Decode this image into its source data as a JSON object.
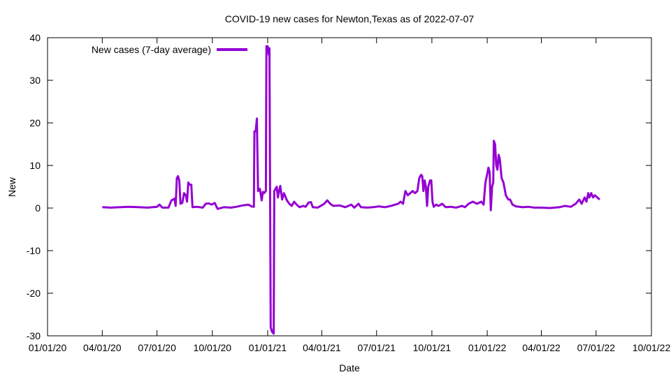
{
  "chart_data": {
    "type": "line",
    "title": "COVID-19 new cases for Newton,Texas as of 2022-07-07",
    "xlabel": "Date",
    "ylabel": "New",
    "ylim": [
      -30,
      40
    ],
    "yticks": [
      -30,
      -20,
      -10,
      0,
      10,
      20,
      30,
      40
    ],
    "xlim": [
      "2020-01-01",
      "2022-10-01"
    ],
    "xticks": [
      {
        "date": "2020-01-01",
        "label": "01/01/20"
      },
      {
        "date": "2020-04-01",
        "label": "04/01/20"
      },
      {
        "date": "2020-07-01",
        "label": "07/01/20"
      },
      {
        "date": "2020-10-01",
        "label": "10/01/20"
      },
      {
        "date": "2021-01-01",
        "label": "01/01/21"
      },
      {
        "date": "2021-04-01",
        "label": "04/01/21"
      },
      {
        "date": "2021-07-01",
        "label": "07/01/21"
      },
      {
        "date": "2021-10-01",
        "label": "10/01/21"
      },
      {
        "date": "2022-01-01",
        "label": "01/01/22"
      },
      {
        "date": "2022-04-01",
        "label": "04/01/22"
      },
      {
        "date": "2022-07-01",
        "label": "07/01/22"
      },
      {
        "date": "2022-10-01",
        "label": "10/01/22"
      }
    ],
    "grid": false,
    "legend_position": "top-left",
    "series": [
      {
        "name": "New cases (7-day average)",
        "color": "#9400d3",
        "points": [
          [
            "2020-04-01",
            0.2
          ],
          [
            "2020-04-15",
            0.1
          ],
          [
            "2020-05-01",
            0.2
          ],
          [
            "2020-05-15",
            0.3
          ],
          [
            "2020-06-01",
            0.2
          ],
          [
            "2020-06-15",
            0.1
          ],
          [
            "2020-07-01",
            0.3
          ],
          [
            "2020-07-05",
            0.8
          ],
          [
            "2020-07-10",
            0.1
          ],
          [
            "2020-07-20",
            0.1
          ],
          [
            "2020-07-25",
            1.8
          ],
          [
            "2020-07-30",
            2.2
          ],
          [
            "2020-08-01",
            0.5
          ],
          [
            "2020-08-03",
            7.0
          ],
          [
            "2020-08-05",
            7.5
          ],
          [
            "2020-08-07",
            6.5
          ],
          [
            "2020-08-09",
            1.0
          ],
          [
            "2020-08-12",
            1.2
          ],
          [
            "2020-08-15",
            3.5
          ],
          [
            "2020-08-18",
            3.0
          ],
          [
            "2020-08-20",
            1.5
          ],
          [
            "2020-08-22",
            6.0
          ],
          [
            "2020-08-24",
            5.5
          ],
          [
            "2020-08-27",
            5.5
          ],
          [
            "2020-08-29",
            0.2
          ],
          [
            "2020-09-05",
            0.3
          ],
          [
            "2020-09-15",
            0.1
          ],
          [
            "2020-09-20",
            1.0
          ],
          [
            "2020-09-25",
            1.1
          ],
          [
            "2020-09-30",
            0.8
          ],
          [
            "2020-10-05",
            1.2
          ],
          [
            "2020-10-08",
            0.3
          ],
          [
            "2020-10-10",
            -0.2
          ],
          [
            "2020-10-20",
            0.2
          ],
          [
            "2020-11-01",
            0.1
          ],
          [
            "2020-11-10",
            0.3
          ],
          [
            "2020-11-20",
            0.6
          ],
          [
            "2020-11-30",
            0.8
          ],
          [
            "2020-12-05",
            0.4
          ],
          [
            "2020-12-09",
            0.3
          ],
          [
            "2020-12-10",
            18.0
          ],
          [
            "2020-12-12",
            18.0
          ],
          [
            "2020-12-14",
            21.0
          ],
          [
            "2020-12-16",
            4.0
          ],
          [
            "2020-12-19",
            4.5
          ],
          [
            "2020-12-22",
            1.8
          ],
          [
            "2020-12-24",
            3.8
          ],
          [
            "2020-12-26",
            3.5
          ],
          [
            "2020-12-29",
            4.0
          ],
          [
            "2020-12-30",
            38.0
          ],
          [
            "2021-01-01",
            38.0
          ],
          [
            "2021-01-03",
            36.0
          ],
          [
            "2021-01-04",
            37.5
          ],
          [
            "2021-01-06",
            -28.0
          ],
          [
            "2021-01-08",
            -29.0
          ],
          [
            "2021-01-11",
            -29.5
          ],
          [
            "2021-01-12",
            4.0
          ],
          [
            "2021-01-14",
            4.5
          ],
          [
            "2021-01-16",
            5.0
          ],
          [
            "2021-01-18",
            2.5
          ],
          [
            "2021-01-20",
            4.0
          ],
          [
            "2021-01-22",
            5.2
          ],
          [
            "2021-01-25",
            2.0
          ],
          [
            "2021-01-28",
            3.5
          ],
          [
            "2021-02-02",
            1.8
          ],
          [
            "2021-02-06",
            1.0
          ],
          [
            "2021-02-10",
            0.5
          ],
          [
            "2021-02-14",
            1.5
          ],
          [
            "2021-02-18",
            0.8
          ],
          [
            "2021-02-23",
            0.2
          ],
          [
            "2021-03-01",
            0.5
          ],
          [
            "2021-03-05",
            0.3
          ],
          [
            "2021-03-10",
            1.3
          ],
          [
            "2021-03-14",
            1.4
          ],
          [
            "2021-03-17",
            0.2
          ],
          [
            "2021-03-25",
            0.1
          ],
          [
            "2021-04-05",
            1.0
          ],
          [
            "2021-04-10",
            1.8
          ],
          [
            "2021-04-15",
            1.0
          ],
          [
            "2021-04-20",
            0.5
          ],
          [
            "2021-05-01",
            0.6
          ],
          [
            "2021-05-10",
            0.2
          ],
          [
            "2021-05-20",
            0.8
          ],
          [
            "2021-05-25",
            0.1
          ],
          [
            "2021-06-01",
            1.0
          ],
          [
            "2021-06-05",
            0.2
          ],
          [
            "2021-06-15",
            0.1
          ],
          [
            "2021-06-25",
            0.2
          ],
          [
            "2021-07-05",
            0.4
          ],
          [
            "2021-07-15",
            0.2
          ],
          [
            "2021-07-25",
            0.5
          ],
          [
            "2021-08-01",
            0.8
          ],
          [
            "2021-08-06",
            1.0
          ],
          [
            "2021-08-10",
            1.5
          ],
          [
            "2021-08-14",
            1.0
          ],
          [
            "2021-08-18",
            4.0
          ],
          [
            "2021-08-22",
            3.0
          ],
          [
            "2021-08-26",
            3.5
          ],
          [
            "2021-08-30",
            4.0
          ],
          [
            "2021-09-03",
            3.5
          ],
          [
            "2021-09-07",
            4.0
          ],
          [
            "2021-09-10",
            7.0
          ],
          [
            "2021-09-13",
            7.8
          ],
          [
            "2021-09-15",
            7.5
          ],
          [
            "2021-09-17",
            4.0
          ],
          [
            "2021-09-19",
            6.5
          ],
          [
            "2021-09-21",
            5.0
          ],
          [
            "2021-09-23",
            0.5
          ],
          [
            "2021-09-25",
            5.0
          ],
          [
            "2021-09-28",
            6.5
          ],
          [
            "2021-09-30",
            6.5
          ],
          [
            "2021-10-02",
            1.5
          ],
          [
            "2021-10-04",
            0.3
          ],
          [
            "2021-10-08",
            0.8
          ],
          [
            "2021-10-12",
            0.5
          ],
          [
            "2021-10-18",
            1.0
          ],
          [
            "2021-10-24",
            0.2
          ],
          [
            "2021-11-01",
            0.3
          ],
          [
            "2021-11-10",
            0.1
          ],
          [
            "2021-11-20",
            0.5
          ],
          [
            "2021-11-25",
            0.2
          ],
          [
            "2021-12-01",
            1.0
          ],
          [
            "2021-12-08",
            1.5
          ],
          [
            "2021-12-15",
            1.0
          ],
          [
            "2021-12-22",
            1.5
          ],
          [
            "2021-12-26",
            0.8
          ],
          [
            "2021-12-29",
            6.0
          ],
          [
            "2022-01-01",
            8.0
          ],
          [
            "2022-01-03",
            9.5
          ],
          [
            "2022-01-05",
            8.5
          ],
          [
            "2022-01-07",
            -0.5
          ],
          [
            "2022-01-09",
            5.0
          ],
          [
            "2022-01-11",
            6.0
          ],
          [
            "2022-01-12",
            15.8
          ],
          [
            "2022-01-14",
            15.0
          ],
          [
            "2022-01-16",
            10.0
          ],
          [
            "2022-01-18",
            9.0
          ],
          [
            "2022-01-20",
            12.5
          ],
          [
            "2022-01-22",
            11.5
          ],
          [
            "2022-01-25",
            7.0
          ],
          [
            "2022-01-28",
            6.0
          ],
          [
            "2022-02-01",
            3.0
          ],
          [
            "2022-02-05",
            2.0
          ],
          [
            "2022-02-08",
            2.0
          ],
          [
            "2022-02-12",
            0.8
          ],
          [
            "2022-02-18",
            0.4
          ],
          [
            "2022-03-01",
            0.2
          ],
          [
            "2022-03-10",
            0.3
          ],
          [
            "2022-03-20",
            0.1
          ],
          [
            "2022-04-01",
            0.1
          ],
          [
            "2022-04-15",
            0.0
          ],
          [
            "2022-05-01",
            0.2
          ],
          [
            "2022-05-10",
            0.5
          ],
          [
            "2022-05-20",
            0.3
          ],
          [
            "2022-05-28",
            1.0
          ],
          [
            "2022-06-03",
            2.0
          ],
          [
            "2022-06-07",
            1.0
          ],
          [
            "2022-06-12",
            2.5
          ],
          [
            "2022-06-15",
            1.5
          ],
          [
            "2022-06-18",
            3.5
          ],
          [
            "2022-06-20",
            2.5
          ],
          [
            "2022-06-23",
            3.5
          ],
          [
            "2022-06-26",
            2.5
          ],
          [
            "2022-06-29",
            3.0
          ],
          [
            "2022-07-03",
            2.5
          ],
          [
            "2022-07-07",
            2.0
          ]
        ]
      }
    ]
  }
}
